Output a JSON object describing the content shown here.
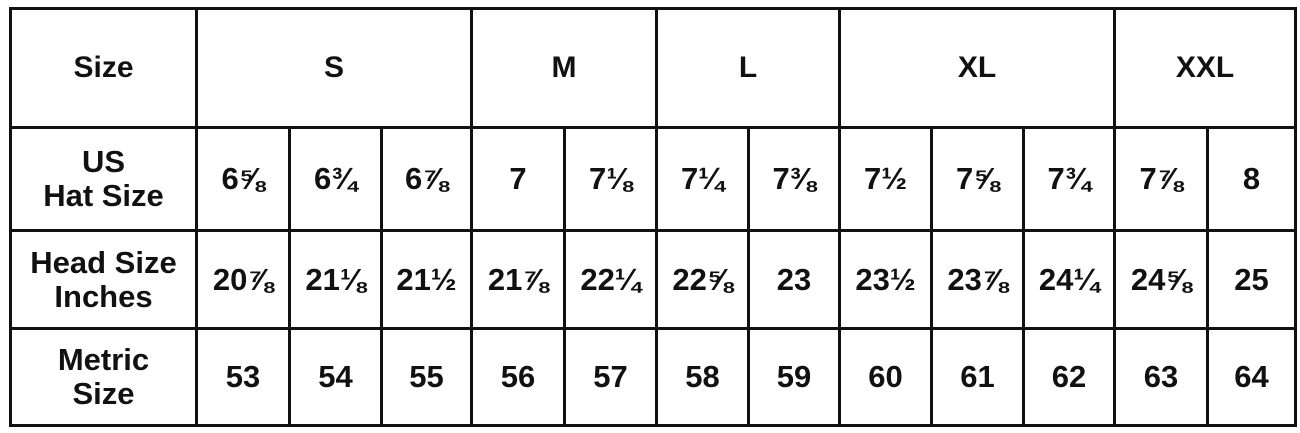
{
  "header": {
    "label": "Size",
    "groups": [
      {
        "label": "S",
        "span": 3
      },
      {
        "label": "M",
        "span": 2
      },
      {
        "label": "L",
        "span": 2
      },
      {
        "label": "XL",
        "span": 3
      },
      {
        "label": "XXL",
        "span": 2
      }
    ]
  },
  "rows": [
    {
      "label_lines": [
        "US",
        "Hat Size"
      ],
      "values": [
        "6⅝",
        "6¾",
        "6⅞",
        "7",
        "7⅛",
        "7¼",
        "7⅜",
        "7½",
        "7⅝",
        "7¾",
        "7⅞",
        "8"
      ]
    },
    {
      "label_lines": [
        "Head Size",
        "Inches"
      ],
      "values": [
        "20⅞",
        "21⅛",
        "21½",
        "21⅞",
        "22¼",
        "22⅝",
        "23",
        "23½",
        "23⅞",
        "24¼",
        "24⅝",
        "25"
      ]
    },
    {
      "label_lines": [
        "Metric",
        "Size"
      ],
      "values": [
        "53",
        "54",
        "55",
        "56",
        "57",
        "58",
        "59",
        "60",
        "61",
        "62",
        "63",
        "64"
      ]
    }
  ]
}
